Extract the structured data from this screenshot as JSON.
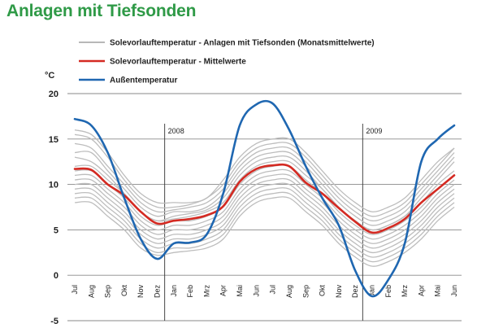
{
  "page": {
    "title": "Anlagen mit Tiefsonden"
  },
  "chart_data": {
    "type": "line",
    "ylabel": "°C",
    "ylim": [
      -5,
      20
    ],
    "yticks": [
      20,
      15,
      10,
      5,
      0,
      -5
    ],
    "grid": true,
    "categories": [
      "Jul",
      "Aug",
      "Sep",
      "Okt",
      "Nov",
      "Dez",
      "Jan",
      "Feb",
      "Mrz",
      "Apr",
      "Mai",
      "Jun",
      "Jul",
      "Aug",
      "Sep",
      "Okt",
      "Nov",
      "Dez",
      "Jan",
      "Feb",
      "Mrz",
      "Apr",
      "Mai",
      "Jun"
    ],
    "year_markers": [
      {
        "label": "2008",
        "after_index": 5
      },
      {
        "label": "2009",
        "after_index": 17
      }
    ],
    "legend": [
      {
        "label": "Solevorlauftemperatur - Anlagen mit Tiefsonden (Monatsmittelwerte)",
        "color": "#b8b8b8"
      },
      {
        "label": "Solevorlauftemperatur - Mittelwerte",
        "color": "#d42a22"
      },
      {
        "label": "Außentemperatur",
        "color": "#1f67b1"
      }
    ],
    "series": [
      {
        "name": "Außentemperatur",
        "color": "#1f67b1",
        "values": [
          17.2,
          16.5,
          13.5,
          8.5,
          4.0,
          1.8,
          3.5,
          3.6,
          4.5,
          9.0,
          16.5,
          18.8,
          18.9,
          16.0,
          12.0,
          8.5,
          5.5,
          0.5,
          -2.3,
          -0.5,
          3.5,
          12.5,
          15.0,
          16.5
        ]
      },
      {
        "name": "Solevorlauftemperatur - Mittelwerte",
        "color": "#d42a22",
        "values": [
          11.7,
          11.6,
          10.0,
          8.8,
          7.0,
          5.7,
          6.0,
          6.2,
          6.6,
          7.6,
          10.3,
          11.7,
          12.1,
          12.0,
          10.2,
          9.0,
          7.4,
          5.9,
          4.7,
          5.2,
          6.2,
          8.0,
          9.5,
          11.0
        ]
      }
    ],
    "background_series": [
      [
        15.5,
        15.0,
        13.0,
        10.5,
        8.5,
        7.5,
        7.5,
        7.8,
        8.5,
        10.0,
        12.5,
        14.0,
        14.5,
        14.5,
        13.0,
        11.0,
        9.0,
        7.5,
        6.5,
        7.0,
        8.0,
        10.0,
        12.0,
        14.0
      ],
      [
        14.5,
        14.0,
        12.0,
        10.0,
        8.0,
        7.0,
        7.2,
        7.5,
        8.0,
        9.5,
        12.0,
        13.5,
        14.0,
        14.0,
        12.5,
        10.5,
        8.5,
        7.0,
        6.0,
        6.5,
        7.5,
        9.5,
        11.5,
        13.5
      ],
      [
        13.5,
        13.5,
        11.5,
        9.5,
        7.5,
        6.5,
        7.0,
        7.0,
        7.5,
        9.0,
        11.5,
        13.0,
        13.5,
        13.5,
        12.0,
        10.0,
        8.0,
        6.5,
        5.5,
        6.0,
        7.0,
        9.0,
        11.0,
        13.0
      ],
      [
        13.0,
        12.5,
        11.0,
        9.0,
        7.0,
        6.0,
        6.5,
        6.8,
        7.2,
        8.5,
        11.0,
        12.5,
        13.0,
        13.0,
        11.5,
        9.5,
        7.5,
        6.0,
        5.0,
        5.5,
        6.5,
        8.5,
        10.5,
        12.5
      ],
      [
        12.0,
        12.0,
        10.5,
        9.0,
        7.0,
        6.0,
        6.2,
        6.5,
        7.0,
        8.0,
        10.5,
        12.0,
        12.5,
        12.5,
        11.0,
        9.5,
        7.5,
        6.0,
        5.0,
        5.5,
        6.5,
        8.0,
        10.0,
        11.5
      ],
      [
        11.5,
        11.5,
        10.0,
        8.5,
        6.5,
        5.5,
        6.0,
        6.0,
        6.5,
        7.5,
        10.0,
        11.5,
        12.0,
        12.0,
        10.5,
        9.0,
        7.0,
        5.5,
        4.5,
        5.0,
        6.0,
        7.5,
        9.5,
        11.0
      ],
      [
        11.0,
        11.0,
        9.5,
        8.0,
        6.0,
        5.0,
        5.5,
        5.5,
        6.0,
        7.0,
        9.5,
        11.0,
        11.5,
        11.5,
        10.0,
        8.5,
        6.5,
        5.0,
        4.0,
        4.5,
        5.5,
        7.0,
        9.0,
        10.5
      ],
      [
        10.5,
        10.5,
        9.0,
        7.5,
        5.5,
        4.5,
        5.0,
        5.0,
        5.5,
        6.5,
        9.0,
        10.5,
        11.0,
        11.0,
        9.5,
        8.0,
        6.0,
        4.5,
        3.5,
        4.0,
        5.0,
        6.5,
        8.5,
        10.0
      ],
      [
        10.0,
        10.0,
        8.5,
        7.0,
        5.0,
        4.0,
        4.5,
        4.5,
        5.0,
        6.0,
        8.5,
        10.0,
        10.5,
        10.5,
        9.0,
        7.5,
        5.5,
        4.0,
        3.0,
        3.5,
        4.5,
        6.0,
        8.0,
        9.5
      ],
      [
        9.5,
        9.5,
        8.0,
        6.5,
        4.5,
        3.5,
        4.0,
        4.0,
        4.5,
        5.5,
        8.0,
        9.5,
        10.0,
        10.0,
        8.5,
        7.0,
        5.0,
        3.5,
        2.5,
        3.0,
        4.0,
        5.5,
        7.5,
        9.0
      ],
      [
        9.0,
        9.0,
        7.5,
        6.0,
        4.0,
        3.0,
        3.5,
        3.5,
        4.0,
        5.0,
        7.5,
        9.0,
        9.5,
        9.5,
        8.0,
        6.5,
        4.5,
        3.0,
        2.0,
        2.5,
        3.5,
        5.0,
        7.0,
        8.5
      ],
      [
        8.5,
        8.5,
        7.0,
        5.5,
        3.5,
        2.5,
        3.0,
        3.0,
        3.5,
        4.5,
        7.0,
        8.5,
        9.0,
        9.0,
        7.5,
        6.0,
        4.0,
        2.5,
        1.5,
        2.0,
        3.0,
        4.5,
        6.5,
        8.0
      ],
      [
        8.0,
        8.0,
        6.5,
        5.0,
        3.0,
        2.2,
        2.5,
        2.7,
        3.0,
        4.0,
        6.5,
        8.0,
        8.5,
        8.5,
        7.0,
        5.5,
        3.5,
        2.0,
        1.0,
        1.5,
        2.5,
        4.0,
        6.0,
        7.5
      ],
      [
        16.0,
        15.5,
        13.5,
        11.0,
        9.0,
        8.0,
        8.0,
        8.0,
        8.5,
        10.5,
        13.0,
        14.5,
        15.0,
        15.0,
        13.5,
        11.5,
        9.5,
        8.0,
        7.0,
        7.5,
        8.5,
        10.5,
        12.5,
        14.0
      ]
    ]
  }
}
